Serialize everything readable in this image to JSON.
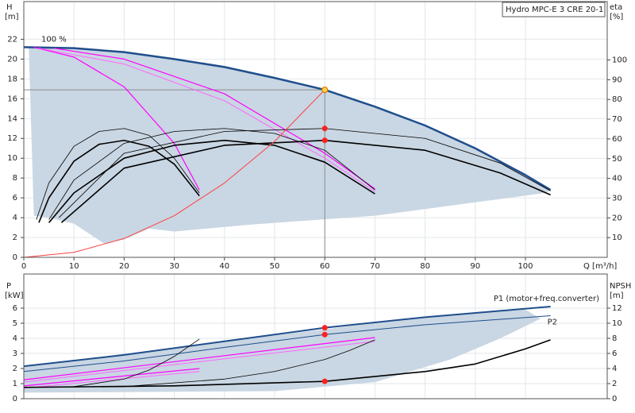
{
  "chart_data": [
    {
      "type": "line",
      "title": "Hydro MPC-E 3 CRE 20-1",
      "y_label": "H",
      "y_unit": "[m]",
      "y2_label": "eta",
      "y2_unit": "[%]",
      "x_label": "Q [m³/h]",
      "annotation": "100 %",
      "xlim": [
        0,
        116.3
      ],
      "ylim": [
        0,
        25.8
      ],
      "y2lim": [
        0,
        129.6
      ],
      "xticks": [
        0,
        10,
        20,
        30,
        40,
        50,
        60,
        70,
        80,
        90,
        100
      ],
      "yticks": [
        0,
        2,
        4,
        6,
        8,
        10,
        12,
        14,
        16,
        18,
        20,
        22
      ],
      "y2ticks": [
        10,
        20,
        30,
        40,
        50,
        60,
        70,
        80,
        90,
        100
      ],
      "grid": true,
      "guide_lines": true,
      "area": {
        "color": "#c9d6e3",
        "x": [
          0.5,
          10,
          20,
          30,
          40,
          50,
          60,
          70,
          80,
          90,
          100,
          105,
          104,
          70,
          45,
          30,
          25,
          20,
          16,
          10,
          5,
          2,
          1
        ],
        "values": [
          21.2,
          21.1,
          20.7,
          20.0,
          19.2,
          18.1,
          16.9,
          15.2,
          13.3,
          11.0,
          8.3,
          6.8,
          6.5,
          4.2,
          3.3,
          2.6,
          2.9,
          1.8,
          1.4,
          3.4,
          4.0,
          4.2,
          21.0
        ]
      },
      "series": [
        {
          "color": "#1f4e8c",
          "width": 2.5,
          "x": [
            0,
            10,
            20,
            30,
            40,
            50,
            60,
            70,
            80,
            90,
            100,
            105
          ],
          "values": [
            21.2,
            21.1,
            20.7,
            20.0,
            19.2,
            18.1,
            16.9,
            15.2,
            13.3,
            11.0,
            8.3,
            6.8
          ]
        },
        {
          "color": "#ff00ff",
          "width": 1.2,
          "x": [
            2,
            10,
            20,
            30,
            35
          ],
          "values": [
            21.2,
            20.2,
            17.2,
            11.5,
            6.8
          ]
        },
        {
          "color": "#ff00ff",
          "width": 1.2,
          "x": [
            6,
            20,
            40,
            60,
            70
          ],
          "values": [
            21.1,
            20.0,
            16.5,
            10.5,
            6.9
          ]
        },
        {
          "color": "#ff66ff",
          "width": 1,
          "x": [
            3,
            20,
            40,
            60,
            70
          ],
          "values": [
            21.1,
            19.5,
            15.8,
            10.0,
            6.6
          ]
        },
        {
          "color": "#000000",
          "width": 0.8,
          "x": [
            2.5,
            5,
            10,
            15,
            20,
            25,
            30,
            35
          ],
          "values": [
            3.8,
            7.5,
            11.2,
            12.7,
            13.0,
            12.3,
            10.0,
            6.5
          ]
        },
        {
          "color": "#000000",
          "width": 1.6,
          "x": [
            3,
            5,
            10,
            15,
            20,
            25,
            30,
            35
          ],
          "values": [
            3.5,
            6.0,
            9.7,
            11.4,
            11.8,
            11.2,
            9.4,
            6.2
          ]
        },
        {
          "color": "#000000",
          "width": 0.8,
          "x": [
            5,
            10,
            20,
            30,
            40,
            50,
            60,
            70
          ],
          "values": [
            3.8,
            7.8,
            11.5,
            12.7,
            13.0,
            12.5,
            10.8,
            6.8
          ]
        },
        {
          "color": "#000000",
          "width": 1.6,
          "x": [
            5,
            10,
            20,
            30,
            40,
            50,
            60,
            70
          ],
          "values": [
            3.5,
            6.5,
            10.0,
            11.3,
            11.8,
            11.3,
            9.6,
            6.4
          ]
        },
        {
          "color": "#000000",
          "width": 0.8,
          "x": [
            7,
            20,
            40,
            60,
            80,
            95,
            105
          ],
          "values": [
            4.0,
            10.5,
            12.7,
            13.0,
            12.0,
            9.5,
            6.7
          ]
        },
        {
          "color": "#000000",
          "width": 1.6,
          "x": [
            7.5,
            20,
            40,
            60,
            80,
            95,
            105
          ],
          "values": [
            3.5,
            9.0,
            11.3,
            11.8,
            10.8,
            8.5,
            6.3
          ]
        },
        {
          "color": "#ff4040",
          "width": 1,
          "x": [
            0,
            10,
            20,
            30,
            40,
            50,
            60
          ],
          "values": [
            0,
            0.5,
            1.9,
            4.2,
            7.5,
            11.7,
            16.9
          ]
        }
      ],
      "points": {
        "x": [
          60,
          60,
          60
        ],
        "values": [
          16.9,
          13.0,
          11.8
        ],
        "colors": [
          "#ffd24a",
          "#ff2020",
          "#ff2020"
        ]
      }
    },
    {
      "type": "line",
      "y_label": "P",
      "y_unit": "[kW]",
      "y2_label": "NPSH",
      "y2_unit": "[m]",
      "xlim": [
        0,
        116.3
      ],
      "ylim": [
        0,
        8.26
      ],
      "y2lim": [
        0,
        16.52
      ],
      "yticks": [
        0,
        1,
        2,
        3,
        4,
        5,
        6
      ],
      "y2ticks": [
        0,
        2,
        4,
        6,
        8,
        10,
        12
      ],
      "grid": true,
      "area": {
        "color": "#c9d6e3",
        "x": [
          0,
          40,
          80,
          100,
          103,
          95,
          85,
          70,
          50,
          0
        ],
        "values": [
          2.15,
          3.8,
          5.4,
          5.9,
          5.3,
          4.0,
          2.6,
          1.1,
          0.5,
          0.4
        ]
      },
      "series": [
        {
          "name": "P1 (motor+freq.converter)",
          "color": "#1f4e8c",
          "width": 2,
          "x": [
            0,
            20,
            40,
            60,
            80,
            105
          ],
          "values": [
            2.15,
            2.9,
            3.8,
            4.7,
            5.4,
            6.1
          ]
        },
        {
          "name": "P2",
          "color": "#1f4e8c",
          "width": 1,
          "x": [
            0,
            20,
            40,
            60,
            80,
            105
          ],
          "values": [
            1.8,
            2.5,
            3.4,
            4.25,
            4.9,
            5.5
          ]
        },
        {
          "color": "#ff00ff",
          "width": 1.2,
          "x": [
            0,
            70
          ],
          "values": [
            1.25,
            4.05
          ]
        },
        {
          "color": "#ff66ff",
          "width": 1,
          "x": [
            0,
            70
          ],
          "values": [
            1.1,
            3.8
          ]
        },
        {
          "color": "#ff00ff",
          "width": 1.2,
          "x": [
            0,
            35
          ],
          "values": [
            0.85,
            2.0
          ]
        },
        {
          "color": "#ff66ff",
          "width": 1,
          "x": [
            0,
            35
          ],
          "values": [
            0.7,
            1.8
          ]
        },
        {
          "color": "#000000",
          "width": 0.8,
          "x": [
            0,
            10,
            20,
            25,
            30,
            35
          ],
          "values": [
            0.75,
            0.8,
            1.3,
            1.9,
            2.8,
            3.95
          ]
        },
        {
          "color": "#000000",
          "width": 0.8,
          "x": [
            0,
            20,
            40,
            50,
            60,
            65,
            70
          ],
          "values": [
            0.75,
            0.8,
            1.3,
            1.8,
            2.6,
            3.2,
            3.9
          ]
        },
        {
          "color": "#000000",
          "width": 1.6,
          "x": [
            0,
            30,
            60,
            80,
            90,
            100,
            105
          ],
          "values": [
            0.75,
            0.85,
            1.15,
            1.8,
            2.3,
            3.3,
            3.9
          ]
        }
      ],
      "points": {
        "x": [
          60,
          60,
          60
        ],
        "values": [
          4.7,
          4.25,
          1.15
        ],
        "colors": [
          "#ff2020",
          "#ff2020",
          "#ff2020"
        ]
      }
    }
  ]
}
